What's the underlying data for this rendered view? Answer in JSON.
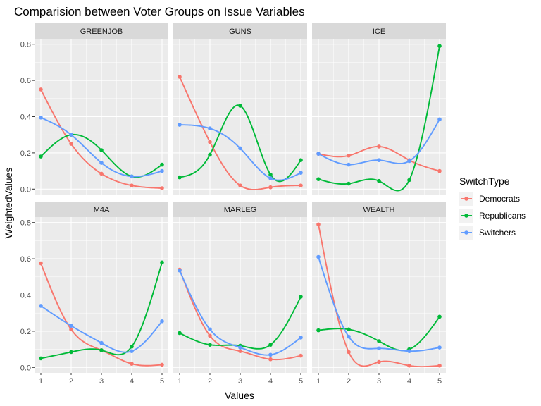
{
  "chart_data": {
    "type": "line",
    "title": "Comparision between Voter Groups on Issue Variables",
    "xlabel": "Values",
    "ylabel": "WeightedValues",
    "x": [
      1,
      2,
      3,
      4,
      5
    ],
    "xlim": [
      1,
      5
    ],
    "ylim": [
      -0.03,
      0.83
    ],
    "yticks": [
      0.0,
      0.2,
      0.4,
      0.6,
      0.8
    ],
    "ytick_labels": [
      "0.0",
      "0.2",
      "0.4",
      "0.6",
      "0.8"
    ],
    "xtick_labels": [
      "1",
      "2",
      "3",
      "4",
      "5"
    ],
    "grid": true,
    "smoothed": true,
    "legend": {
      "title": "SwitchType",
      "position": "right",
      "entries": [
        "Democrats",
        "Republicans",
        "Switchers"
      ]
    },
    "colors": {
      "Democrats": "#F8766D",
      "Republicans": "#00BA38",
      "Switchers": "#619CFF",
      "panel_bg": "#EBEBEB",
      "strip_bg": "#D9D9D9",
      "grid": "#FFFFFF"
    },
    "panels": [
      {
        "name": "GREENJOB",
        "series": [
          {
            "name": "Democrats",
            "values": [
              0.55,
              0.25,
              0.085,
              0.02,
              0.005
            ]
          },
          {
            "name": "Republicans",
            "values": [
              0.18,
              0.3,
              0.215,
              0.07,
              0.135
            ]
          },
          {
            "name": "Switchers",
            "values": [
              0.395,
              0.3,
              0.145,
              0.07,
              0.1
            ]
          }
        ]
      },
      {
        "name": "GUNS",
        "series": [
          {
            "name": "Democrats",
            "values": [
              0.62,
              0.26,
              0.02,
              0.01,
              0.02
            ]
          },
          {
            "name": "Republicans",
            "values": [
              0.065,
              0.19,
              0.46,
              0.08,
              0.16
            ]
          },
          {
            "name": "Switchers",
            "values": [
              0.355,
              0.335,
              0.225,
              0.06,
              0.09
            ]
          }
        ]
      },
      {
        "name": "ICE",
        "series": [
          {
            "name": "Democrats",
            "values": [
              0.195,
              0.185,
              0.235,
              0.16,
              0.1
            ]
          },
          {
            "name": "Republicans",
            "values": [
              0.055,
              0.03,
              0.045,
              0.05,
              0.79
            ]
          },
          {
            "name": "Switchers",
            "values": [
              0.195,
              0.135,
              0.16,
              0.155,
              0.385
            ]
          }
        ]
      },
      {
        "name": "M4A",
        "series": [
          {
            "name": "Democrats",
            "values": [
              0.575,
              0.21,
              0.095,
              0.02,
              0.015
            ]
          },
          {
            "name": "Republicans",
            "values": [
              0.05,
              0.085,
              0.095,
              0.115,
              0.58
            ]
          },
          {
            "name": "Switchers",
            "values": [
              0.34,
              0.23,
              0.135,
              0.09,
              0.255
            ]
          }
        ]
      },
      {
        "name": "MARLEG",
        "series": [
          {
            "name": "Democrats",
            "values": [
              0.54,
              0.175,
              0.09,
              0.045,
              0.065
            ]
          },
          {
            "name": "Republicans",
            "values": [
              0.19,
              0.125,
              0.12,
              0.125,
              0.39
            ]
          },
          {
            "name": "Switchers",
            "values": [
              0.535,
              0.21,
              0.11,
              0.07,
              0.165
            ]
          }
        ]
      },
      {
        "name": "WEALTH",
        "series": [
          {
            "name": "Democrats",
            "values": [
              0.79,
              0.085,
              0.03,
              0.01,
              0.01
            ]
          },
          {
            "name": "Republicans",
            "values": [
              0.205,
              0.21,
              0.145,
              0.1,
              0.28
            ]
          },
          {
            "name": "Switchers",
            "values": [
              0.61,
              0.17,
              0.105,
              0.09,
              0.11
            ]
          }
        ]
      }
    ]
  }
}
